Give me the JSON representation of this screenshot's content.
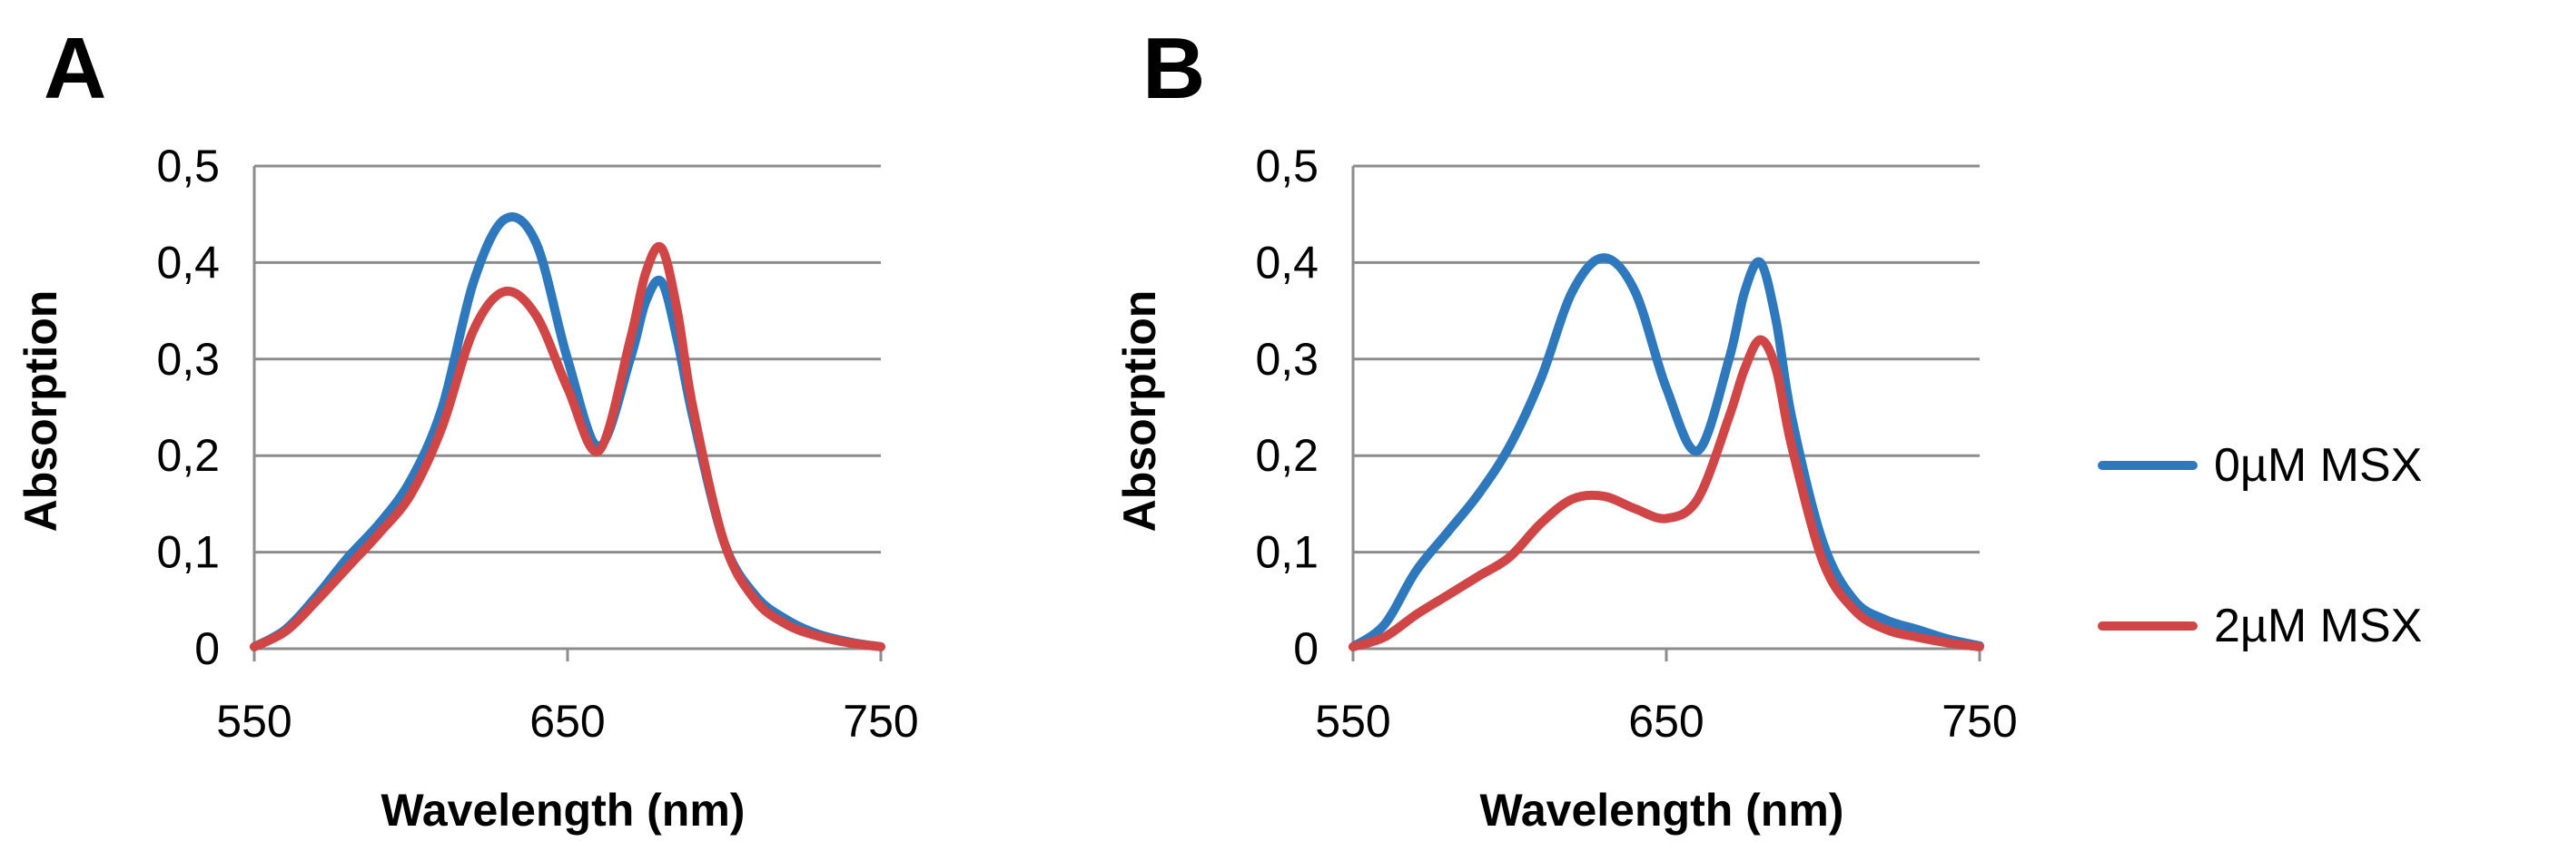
{
  "colors": {
    "series_0": "#2e78bd",
    "series_1": "#d04545",
    "grid": "#8c8c8c",
    "axis": "#8c8c8c"
  },
  "legend": {
    "placement": "right",
    "entries": [
      "0µM MSX",
      "2µM MSX"
    ]
  },
  "chart_data": [
    {
      "type": "line",
      "panel": "A",
      "xlabel": "Wavelength (nm)",
      "ylabel": "Absorption",
      "xlim": [
        550,
        750
      ],
      "ylim": [
        0,
        0.5
      ],
      "x_ticks": [
        "550",
        "650",
        "750"
      ],
      "y_ticks": [
        "0",
        "0,1",
        "0,2",
        "0,3",
        "0,4",
        "0,5"
      ],
      "x": [
        550,
        560,
        570,
        580,
        590,
        600,
        610,
        620,
        630,
        640,
        650,
        660,
        670,
        675,
        680,
        685,
        690,
        700,
        710,
        720,
        730,
        740,
        750
      ],
      "series": [
        {
          "name": "0µM MSX",
          "values": [
            0.002,
            0.02,
            0.055,
            0.095,
            0.13,
            0.175,
            0.25,
            0.38,
            0.445,
            0.42,
            0.3,
            0.21,
            0.3,
            0.36,
            0.38,
            0.32,
            0.24,
            0.11,
            0.055,
            0.03,
            0.015,
            0.007,
            0.002
          ]
        },
        {
          "name": "2µM MSX",
          "values": [
            0.002,
            0.018,
            0.05,
            0.085,
            0.12,
            0.16,
            0.23,
            0.33,
            0.37,
            0.345,
            0.27,
            0.205,
            0.32,
            0.39,
            0.415,
            0.35,
            0.25,
            0.11,
            0.05,
            0.025,
            0.013,
            0.006,
            0.002
          ]
        }
      ]
    },
    {
      "type": "line",
      "panel": "B",
      "xlabel": "Wavelength (nm)",
      "ylabel": "Absorption",
      "xlim": [
        550,
        750
      ],
      "ylim": [
        0,
        0.5
      ],
      "x_ticks": [
        "550",
        "650",
        "750"
      ],
      "y_ticks": [
        "0",
        "0,1",
        "0,2",
        "0,3",
        "0,4",
        "0,5"
      ],
      "x": [
        550,
        560,
        570,
        580,
        590,
        600,
        610,
        620,
        630,
        640,
        650,
        660,
        670,
        675,
        680,
        685,
        690,
        700,
        710,
        720,
        730,
        740,
        750
      ],
      "series": [
        {
          "name": "0µM MSX",
          "values": [
            0.002,
            0.025,
            0.08,
            0.12,
            0.16,
            0.21,
            0.28,
            0.37,
            0.405,
            0.37,
            0.27,
            0.205,
            0.3,
            0.37,
            0.4,
            0.34,
            0.24,
            0.11,
            0.05,
            0.03,
            0.02,
            0.01,
            0.003
          ]
        },
        {
          "name": "2µM MSX",
          "values": [
            0.002,
            0.012,
            0.035,
            0.055,
            0.075,
            0.095,
            0.13,
            0.155,
            0.158,
            0.145,
            0.135,
            0.155,
            0.24,
            0.29,
            0.32,
            0.29,
            0.21,
            0.09,
            0.04,
            0.02,
            0.012,
            0.006,
            0.002
          ]
        }
      ]
    }
  ]
}
